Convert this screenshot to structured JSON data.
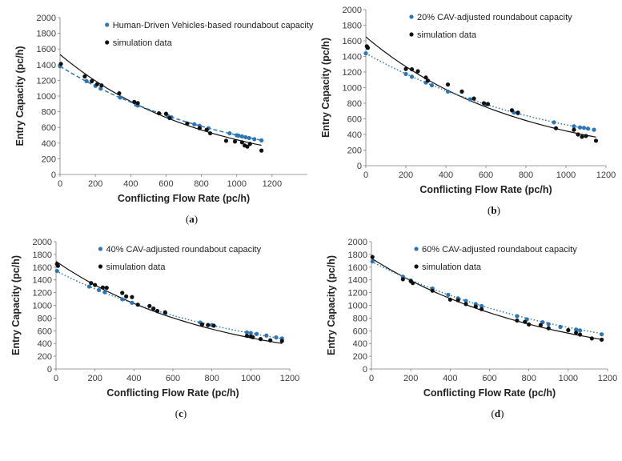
{
  "chart_data": [
    {
      "type": "scatter",
      "caption_letter": "a",
      "xlabel": "Conflicting Flow Rate (pc/h)",
      "ylabel": "Entry Capacity (pc/h)",
      "xlim": [
        0,
        1400
      ],
      "ylim": [
        0,
        2000
      ],
      "xticks": [
        "0",
        "200",
        "400",
        "600",
        "800",
        "1000",
        "1200"
      ],
      "yticks": [
        "0",
        "200",
        "400",
        "600",
        "800",
        "1000",
        "1200",
        "1400",
        "1600",
        "1800",
        "2000"
      ],
      "legend_position": "top",
      "model": {
        "name": "Human-Driven Vehicles-based roundabout capacity",
        "color": "#2e75b6",
        "line_style": "dashed",
        "curve": {
          "a": 1380,
          "b": 0.00101
        },
        "x": [
          0,
          150,
          200,
          230,
          340,
          430,
          440,
          610,
          630,
          760,
          790,
          840,
          960,
          1000,
          1010,
          1030,
          1050,
          1070,
          1100,
          1140
        ],
        "y": [
          1380,
          1190,
          1130,
          1095,
          980,
          890,
          880,
          745,
          730,
          640,
          620,
          590,
          525,
          500,
          495,
          485,
          475,
          465,
          450,
          435
        ]
      },
      "simulation": {
        "name": "simulation data",
        "color": "#111111",
        "curve": {
          "a": 1530,
          "b": 0.00124
        },
        "x": [
          5,
          140,
          180,
          210,
          235,
          335,
          420,
          440,
          560,
          600,
          620,
          720,
          790,
          830,
          850,
          940,
          990,
          1030,
          1045,
          1060,
          1075,
          1140
        ],
        "y": [
          1410,
          1250,
          1190,
          1150,
          1135,
          1035,
          925,
          910,
          780,
          775,
          720,
          650,
          590,
          570,
          525,
          430,
          420,
          410,
          370,
          355,
          390,
          305
        ]
      }
    },
    {
      "type": "scatter",
      "caption_letter": "b",
      "xlabel": "Conflicting Flow Rate (pc/h)",
      "ylabel": "Entry Capacity (pc/h)",
      "xlim": [
        0,
        1200
      ],
      "ylim": [
        0,
        2000
      ],
      "xticks": [
        "0",
        "200",
        "400",
        "600",
        "800",
        "1000",
        "1200"
      ],
      "yticks": [
        "0",
        "200",
        "400",
        "600",
        "800",
        "1000",
        "1200",
        "1400",
        "1600",
        "1800",
        "2000"
      ],
      "legend_position": "top",
      "model": {
        "name": "20% CAV-adjusted roundabout capacity",
        "color": "#2e75b6",
        "line_style": "dotted",
        "curve": {
          "a": 1440,
          "b": 0.00101
        },
        "x": [
          0,
          200,
          230,
          300,
          330,
          410,
          520,
          600,
          740,
          760,
          940,
          1040,
          1070,
          1090,
          1110,
          1140
        ],
        "y": [
          1440,
          1175,
          1140,
          1065,
          1030,
          950,
          850,
          785,
          680,
          670,
          555,
          505,
          490,
          485,
          475,
          460
        ]
      },
      "simulation": {
        "name": "simulation data",
        "color": "#111111",
        "curve": {
          "a": 1650,
          "b": 0.00131
        },
        "x": [
          5,
          10,
          200,
          230,
          260,
          300,
          310,
          410,
          480,
          540,
          590,
          610,
          730,
          760,
          950,
          1040,
          1060,
          1080,
          1100,
          1150
        ],
        "y": [
          1530,
          1510,
          1240,
          1235,
          1210,
          1130,
          1090,
          1040,
          950,
          860,
          800,
          790,
          710,
          680,
          480,
          460,
          400,
          370,
          380,
          320
        ]
      }
    },
    {
      "type": "scatter",
      "caption_letter": "c",
      "xlabel": "Conflicting Flow Rate (pc/h)",
      "ylabel": "Entry Capacity (pc/h)",
      "xlim": [
        0,
        1200
      ],
      "ylim": [
        0,
        2000
      ],
      "xticks": [
        "0",
        "200",
        "400",
        "600",
        "800",
        "1000",
        "1200"
      ],
      "yticks": [
        "0",
        "200",
        "400",
        "600",
        "800",
        "1000",
        "1200",
        "1400",
        "1600",
        "1800",
        "2000"
      ],
      "legend_position": "top",
      "model": {
        "name": "40% CAV-adjusted roundabout capacity",
        "color": "#2e75b6",
        "line_style": "dotted",
        "curve": {
          "a": 1540,
          "b": 0.00101
        },
        "x": [
          5,
          170,
          220,
          250,
          340,
          390,
          520,
          560,
          740,
          800,
          980,
          1000,
          1030,
          1080,
          1130,
          1160
        ],
        "y": [
          1540,
          1295,
          1240,
          1205,
          1095,
          1040,
          910,
          875,
          730,
          690,
          575,
          565,
          550,
          525,
          495,
          480
        ]
      },
      "simulation": {
        "name": "simulation data",
        "color": "#111111",
        "curve": {
          "a": 1690,
          "b": 0.00124
        },
        "x": [
          5,
          10,
          180,
          200,
          240,
          260,
          340,
          360,
          390,
          420,
          480,
          500,
          520,
          560,
          750,
          780,
          810,
          980,
          1000,
          1010,
          1050,
          1100,
          1160
        ],
        "y": [
          1650,
          1620,
          1350,
          1320,
          1280,
          1275,
          1195,
          1140,
          1130,
          1010,
          990,
          950,
          910,
          890,
          700,
          690,
          680,
          520,
          510,
          500,
          470,
          450,
          440
        ]
      }
    },
    {
      "type": "scatter",
      "caption_letter": "d",
      "xlabel": "Conflicting Flow Rate (pc/h)",
      "ylabel": "Entry Capacity (pc/h)",
      "xlim": [
        0,
        1200
      ],
      "ylim": [
        0,
        2000
      ],
      "xticks": [
        "0",
        "200",
        "400",
        "600",
        "800",
        "1000",
        "1200"
      ],
      "yticks": [
        "0",
        "200",
        "400",
        "600",
        "800",
        "1000",
        "1200",
        "1400",
        "1600",
        "1800",
        "2000"
      ],
      "legend_position": "top",
      "model": {
        "name": "60% CAV-adjusted roundabout capacity",
        "color": "#2e75b6",
        "line_style": "dotted",
        "curve": {
          "a": 1690,
          "b": 0.00095
        },
        "x": [
          5,
          160,
          200,
          310,
          390,
          440,
          480,
          530,
          560,
          740,
          790,
          870,
          900,
          960,
          1040,
          1060,
          1170
        ],
        "y": [
          1690,
          1450,
          1390,
          1265,
          1165,
          1110,
          1070,
          1020,
          990,
          830,
          780,
          735,
          705,
          660,
          620,
          605,
          545
        ]
      },
      "simulation": {
        "name": "simulation data",
        "color": "#111111",
        "curve": {
          "a": 1740,
          "b": 0.00113
        },
        "x": [
          5,
          160,
          200,
          210,
          310,
          400,
          440,
          480,
          530,
          560,
          740,
          780,
          800,
          860,
          900,
          1000,
          1040,
          1060,
          1120,
          1170
        ],
        "y": [
          1760,
          1410,
          1380,
          1350,
          1230,
          1090,
          1080,
          1020,
          980,
          940,
          760,
          740,
          700,
          690,
          640,
          610,
          570,
          540,
          480,
          460
        ]
      }
    }
  ]
}
